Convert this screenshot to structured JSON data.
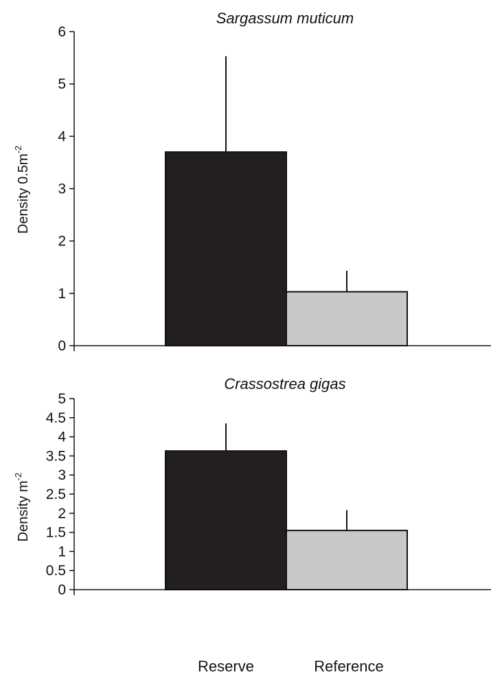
{
  "chart_data": [
    {
      "type": "bar",
      "title": "Sargassum muticum",
      "ylabel": "Density 0.5m",
      "ylabel_exponent": "-2",
      "xlabel": "",
      "categories": [
        "Reserve",
        "Reference"
      ],
      "values": [
        3.7,
        1.03
      ],
      "error_upper": [
        5.53,
        1.43
      ],
      "colors": [
        "#231f20",
        "#c8c8c8"
      ],
      "ylim": [
        0,
        6
      ],
      "yticks": [
        "0",
        "1",
        "2",
        "3",
        "4",
        "5",
        "6"
      ],
      "grid": false
    },
    {
      "type": "bar",
      "title": "Crassostrea gigas",
      "ylabel": "Density m",
      "ylabel_exponent": "-2",
      "xlabel": "",
      "categories": [
        "Reserve",
        "Reference"
      ],
      "values": [
        3.63,
        1.55
      ],
      "error_upper": [
        4.35,
        2.08
      ],
      "colors": [
        "#231f20",
        "#c8c8c8"
      ],
      "ylim": [
        0,
        5
      ],
      "yticks": [
        "0",
        "0.5",
        "1",
        "1.5",
        "2",
        "2.5",
        "3",
        "3.5",
        "4",
        "4.5",
        "5"
      ],
      "grid": false
    }
  ],
  "x_categories": [
    "Reserve",
    "Reference"
  ]
}
